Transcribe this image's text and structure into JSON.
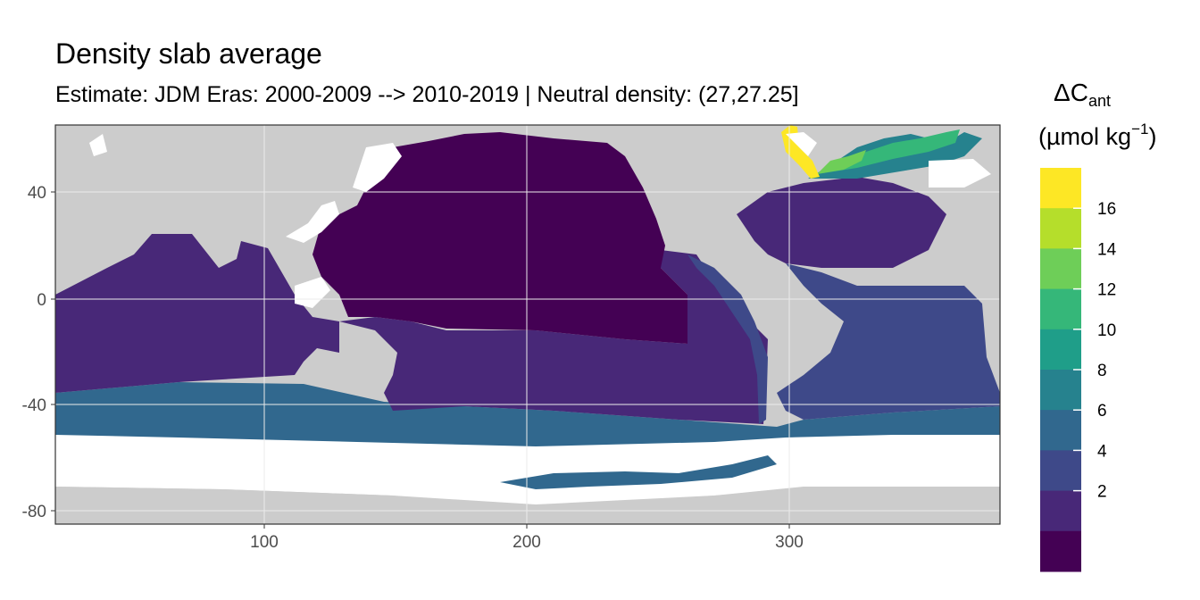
{
  "title": "Density slab average",
  "subtitle": "Estimate: JDM Eras: 2000-2009 --> 2010-2019 | Neutral density: (27,27.25]",
  "map": {
    "x_ticks": [
      "100",
      "200",
      "300"
    ],
    "y_ticks": [
      "40",
      "0",
      "-40",
      "-80"
    ],
    "x_range": [
      20,
      380
    ],
    "y_range": [
      -85,
      65
    ],
    "land_color": "#cccccc",
    "no_data_color": "#ffffff"
  },
  "legend": {
    "title_symbol": "ΔC",
    "title_subscript": "ant",
    "unit_prefix": "(µmol kg",
    "unit_exponent": "−1",
    "unit_suffix": ")",
    "tick_labels": [
      "16",
      "14",
      "12",
      "10",
      "8",
      "6",
      "4",
      "2"
    ],
    "colors": [
      "#fde725",
      "#b5de2b",
      "#6ece58",
      "#35b779",
      "#1f9e89",
      "#26828e",
      "#31688e",
      "#3e4989",
      "#482878",
      "#440154"
    ]
  }
}
